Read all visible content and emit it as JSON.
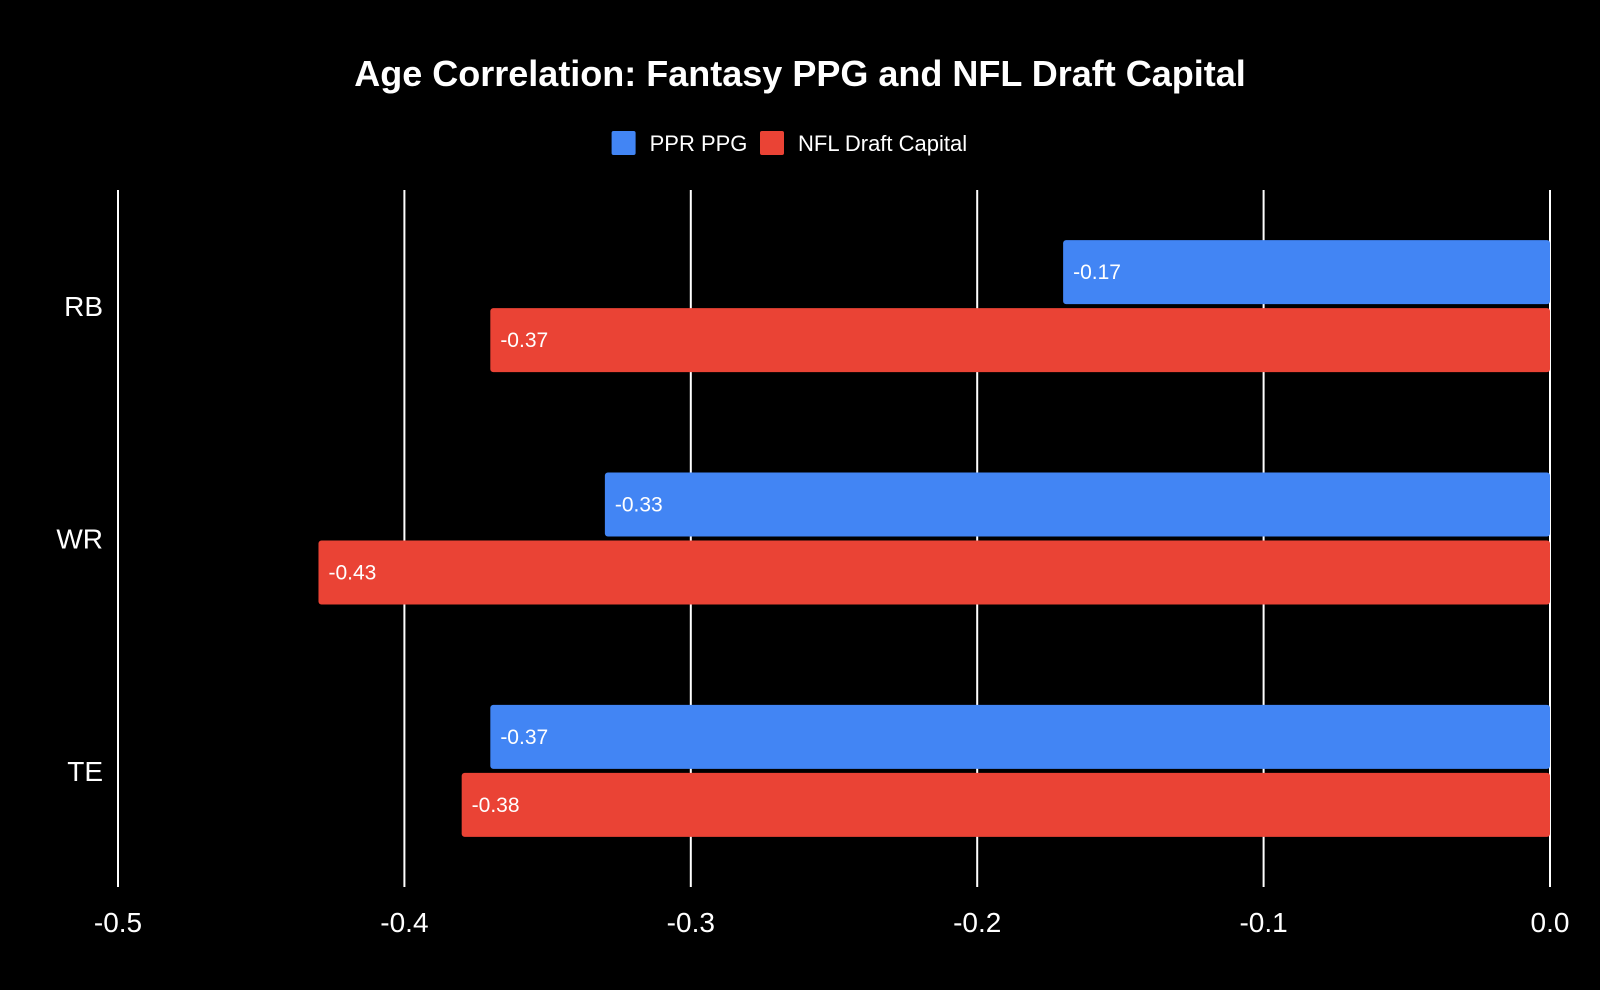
{
  "chart_data": {
    "type": "bar",
    "orientation": "horizontal",
    "title": "Age Correlation: Fantasy PPG and NFL Draft Capital",
    "categories": [
      "RB",
      "WR",
      "TE"
    ],
    "series": [
      {
        "name": "PPR PPG",
        "color": "#4285f4",
        "values": [
          -0.17,
          -0.33,
          -0.37
        ],
        "labels": [
          "-0.17",
          "-0.33",
          "-0.37"
        ]
      },
      {
        "name": "NFL Draft Capital",
        "color": "#ea4335",
        "values": [
          -0.37,
          -0.43,
          -0.38
        ],
        "labels": [
          "-0.37",
          "-0.43",
          "-0.38"
        ]
      }
    ],
    "xlim": [
      -0.5,
      0.0
    ],
    "xticks": [
      -0.5,
      -0.4,
      -0.3,
      -0.2,
      -0.1,
      0.0
    ],
    "xtick_labels": [
      "-0.5",
      "-0.4",
      "-0.3",
      "-0.2",
      "-0.1",
      "0.0"
    ],
    "xlabel": "",
    "ylabel": "",
    "grid": true,
    "legend_position": "top-center",
    "background": "#000000",
    "text_color": "#ffffff",
    "grid_color": "#ffffff"
  }
}
